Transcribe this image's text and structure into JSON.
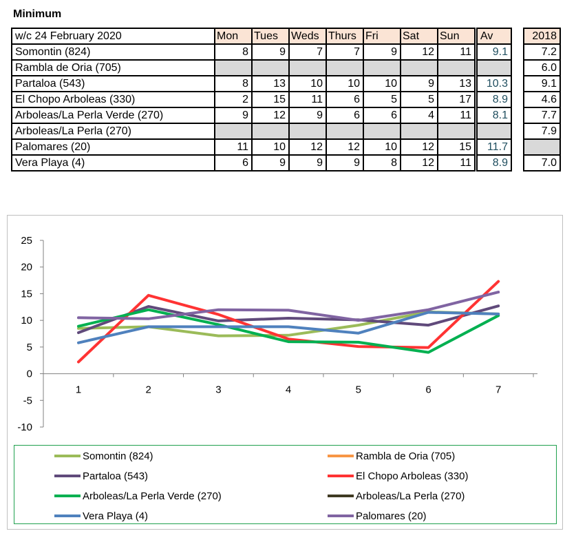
{
  "title": "Minimum",
  "table": {
    "week_label": "w/c 24 February 2020",
    "days": [
      "Mon",
      "Tues",
      "Weds",
      "Thurs",
      "Fri",
      "Sat",
      "Sun"
    ],
    "av_header": "Av",
    "prev_year_header": "2018",
    "rows": [
      {
        "name": "Somontin (824)",
        "values": [
          "8",
          "9",
          "7",
          "7",
          "9",
          "12",
          "11"
        ],
        "av": "9.1",
        "prev": "7.2"
      },
      {
        "name": "Rambla de Oria (705)",
        "values": [
          "",
          "",
          "",
          "",
          "",
          "",
          ""
        ],
        "av": "",
        "prev": "6.0"
      },
      {
        "name": "Partaloa (543)",
        "values": [
          "8",
          "13",
          "10",
          "10",
          "10",
          "9",
          "13"
        ],
        "av": "10.3",
        "prev": "9.1"
      },
      {
        "name": "El Chopo Arboleas (330)",
        "values": [
          "2",
          "15",
          "11",
          "6",
          "5",
          "5",
          "17"
        ],
        "av": "8.9",
        "prev": "4.6"
      },
      {
        "name": "Arboleas/La Perla Verde (270)",
        "values": [
          "9",
          "12",
          "9",
          "6",
          "6",
          "4",
          "11"
        ],
        "av": "8.1",
        "prev": "7.7"
      },
      {
        "name": "Arboleas/La Perla (270)",
        "values": [
          "",
          "",
          "",
          "",
          "",
          "",
          ""
        ],
        "av": "",
        "prev": "7.9"
      },
      {
        "name": "Palomares (20)",
        "values": [
          "11",
          "10",
          "12",
          "12",
          "10",
          "12",
          "15"
        ],
        "av": "11.7",
        "prev": ""
      },
      {
        "name": "Vera Playa (4)",
        "values": [
          "6",
          "9",
          "9",
          "9",
          "8",
          "12",
          "11"
        ],
        "av": "8.9",
        "prev": "7.0"
      }
    ]
  },
  "chart_data": {
    "type": "line",
    "categories": [
      "1",
      "2",
      "3",
      "4",
      "5",
      "6",
      "7"
    ],
    "ylim": [
      -10,
      25
    ],
    "yticks": [
      "25",
      "20",
      "15",
      "10",
      "5",
      "0",
      "-5",
      "-10"
    ],
    "grid": false,
    "legend_position": "bottom",
    "series": [
      {
        "name": "Somontin (824)",
        "color": "#9bbb59",
        "values": [
          8.5,
          8.8,
          7.1,
          7.2,
          9.1,
          11.6,
          11.2
        ]
      },
      {
        "name": "Rambla de Oria (705)",
        "color": "#f79646",
        "values": [
          null,
          null,
          null,
          null,
          null,
          null,
          null
        ]
      },
      {
        "name": "Partaloa (543)",
        "color": "#604a7b",
        "values": [
          7.7,
          12.6,
          9.9,
          10.4,
          10.1,
          9.1,
          12.7
        ]
      },
      {
        "name": "El Chopo Arboleas (330)",
        "color": "#ff3333",
        "values": [
          2.2,
          14.7,
          11.1,
          6.5,
          5.1,
          4.9,
          17.3
        ]
      },
      {
        "name": "Arboleas/La Perla Verde (270)",
        "color": "#00b050",
        "values": [
          8.9,
          12.0,
          9.2,
          6.0,
          5.9,
          4.0,
          10.9
        ]
      },
      {
        "name": "Arboleas/La Perla (270)",
        "color": "#3f3a22",
        "values": [
          null,
          null,
          null,
          null,
          null,
          null,
          null
        ]
      },
      {
        "name": "Vera Playa (4)",
        "color": "#4f81bd",
        "values": [
          5.8,
          8.8,
          8.8,
          8.8,
          7.6,
          11.5,
          11.2
        ]
      },
      {
        "name": "Palomares (20)",
        "color": "#8064a2",
        "values": [
          10.5,
          10.3,
          12.0,
          11.9,
          10.0,
          12.0,
          15.3
        ]
      }
    ]
  }
}
